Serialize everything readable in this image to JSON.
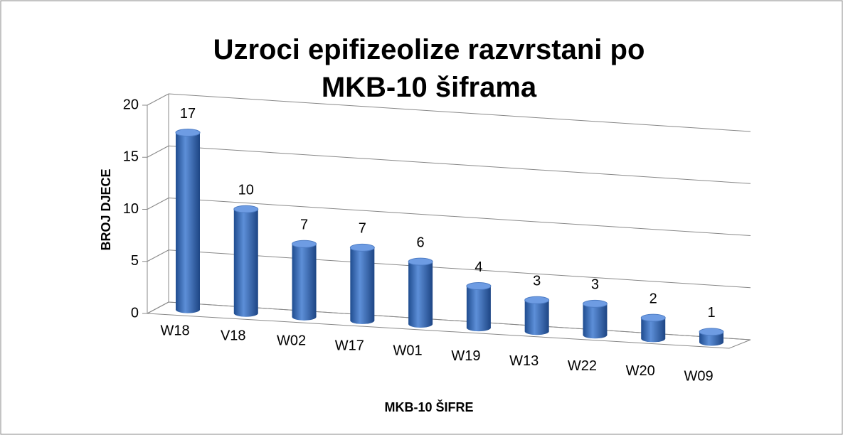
{
  "chart_data": {
    "type": "bar3d",
    "title": "Uzroci epifizeolize razvrstani po MKB-10 šiframa",
    "x_label": "MKB-10 ŠIFRE",
    "y_label": "BROJ DJECE",
    "categories": [
      "W18",
      "V18",
      "W02",
      "W17",
      "W01",
      "W19",
      "W13",
      "W22",
      "W20",
      "W09"
    ],
    "values": [
      17,
      10,
      7,
      7,
      6,
      4,
      3,
      3,
      2,
      1
    ],
    "color": "#3f72bf",
    "ylim": [
      0,
      20
    ],
    "yticks": [
      0,
      5,
      10,
      15,
      20
    ],
    "grid": true
  }
}
